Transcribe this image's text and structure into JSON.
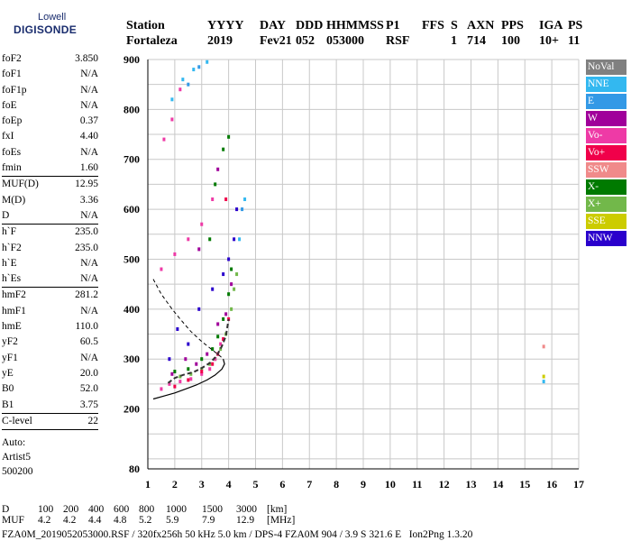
{
  "logo": {
    "line1": "Lowell",
    "line2": "DIGISONDE"
  },
  "header": {
    "line1": [
      "Station",
      "YYYY",
      "DAY",
      "DDD",
      "HHMMSS",
      "P1",
      "FFS",
      "S",
      "AXN",
      "PPS",
      "IGA",
      "PS"
    ],
    "line2": [
      "Fortaleza",
      "2019",
      "Fev21",
      "052",
      "053000",
      "RSF",
      "",
      "1",
      "714",
      "100",
      "10+",
      "11"
    ]
  },
  "params": {
    "group1": [
      {
        "k": "foF2",
        "v": "3.850"
      },
      {
        "k": "foF1",
        "v": "N/A"
      },
      {
        "k": "foF1p",
        "v": "N/A"
      },
      {
        "k": "foE",
        "v": "N/A"
      },
      {
        "k": "foEp",
        "v": "0.37"
      },
      {
        "k": "fxI",
        "v": "4.40"
      },
      {
        "k": "foEs",
        "v": "N/A"
      },
      {
        "k": "fmin",
        "v": "1.60"
      }
    ],
    "group2": [
      {
        "k": "MUF(D)",
        "v": "12.95"
      },
      {
        "k": "M(D)",
        "v": "3.36"
      },
      {
        "k": "D",
        "v": "N/A"
      }
    ],
    "group3": [
      {
        "k": "h`F",
        "v": "235.0"
      },
      {
        "k": "h`F2",
        "v": "235.0"
      },
      {
        "k": "h`E",
        "v": "N/A"
      },
      {
        "k": "h`Es",
        "v": "N/A"
      }
    ],
    "group4": [
      {
        "k": "hmF2",
        "v": "281.2"
      },
      {
        "k": "hmF1",
        "v": "N/A"
      },
      {
        "k": "hmE",
        "v": "110.0"
      },
      {
        "k": "yF2",
        "v": "60.5"
      },
      {
        "k": "yF1",
        "v": "N/A"
      },
      {
        "k": "yE",
        "v": "20.0"
      },
      {
        "k": "B0",
        "v": "52.0"
      },
      {
        "k": "B1",
        "v": "3.75"
      }
    ],
    "group5": [
      {
        "k": "C-level",
        "v": "22"
      }
    ],
    "auto": [
      "Auto:",
      "Artist5",
      "500200"
    ]
  },
  "legend": [
    {
      "label": "NoVal",
      "color": "#808080"
    },
    {
      "label": "NNE",
      "color": "#33b8f0"
    },
    {
      "label": "E",
      "color": "#3399e6"
    },
    {
      "label": "W",
      "color": "#a0009a"
    },
    {
      "label": "Vo-",
      "color": "#ee3aa6"
    },
    {
      "label": "Vo+",
      "color": "#f0004a"
    },
    {
      "label": "SSW",
      "color": "#f08a8a"
    },
    {
      "label": "X-",
      "color": "#007a00"
    },
    {
      "label": "X+",
      "color": "#72b84a"
    },
    {
      "label": "SSE",
      "color": "#cccc00"
    },
    {
      "label": "NNW",
      "color": "#2a00cc"
    }
  ],
  "bottom": {
    "d_label": "D",
    "d_values": [
      "100",
      "200",
      "400",
      "600",
      "800",
      "1000",
      "1500",
      "3000"
    ],
    "d_unit": "[km]",
    "muf_label": "MUF",
    "muf_values": [
      "4.2",
      "4.2",
      "4.4",
      "4.8",
      "5.2",
      "5.9",
      "7.9",
      "12.9"
    ],
    "muf_unit": "[MHz]"
  },
  "footer": "FZA0M_2019052053000.RSF / 320fx256h 50 kHz 5.0 km / DPS-4 FZA0M 904 / 3.9 S 321.6 E   Ion2Png 1.3.20",
  "chart_data": {
    "type": "scatter",
    "x_ticks": [
      "1",
      "2",
      "3",
      "4",
      "5",
      "6",
      "7",
      "8",
      "9",
      "10",
      "11",
      "12",
      "13",
      "14",
      "15",
      "16",
      "17"
    ],
    "y_ticks": [
      "80",
      "200",
      "300",
      "400",
      "500",
      "600",
      "700",
      "800",
      "900"
    ],
    "xlim": [
      1,
      17
    ],
    "ylim": [
      80,
      900
    ],
    "grid": true,
    "legend_position": "right",
    "series": [
      {
        "name": "X+",
        "color": "#72b84a",
        "points": [
          [
            2.2,
            265
          ],
          [
            2.6,
            270
          ],
          [
            3.0,
            280
          ],
          [
            3.3,
            290
          ],
          [
            3.5,
            300
          ],
          [
            3.7,
            320
          ],
          [
            3.9,
            350
          ],
          [
            4.1,
            400
          ],
          [
            4.2,
            440
          ],
          [
            4.3,
            470
          ]
        ]
      },
      {
        "name": "X-",
        "color": "#007a00",
        "points": [
          [
            2.0,
            275
          ],
          [
            2.5,
            280
          ],
          [
            3.0,
            300
          ],
          [
            3.4,
            320
          ],
          [
            3.6,
            345
          ],
          [
            3.8,
            380
          ],
          [
            4.0,
            430
          ],
          [
            4.1,
            480
          ],
          [
            3.3,
            540
          ],
          [
            3.5,
            650
          ],
          [
            3.8,
            720
          ],
          [
            4.0,
            745
          ]
        ]
      },
      {
        "name": "Vo-",
        "color": "#ee3aa6",
        "points": [
          [
            1.5,
            240
          ],
          [
            1.8,
            250
          ],
          [
            2.2,
            255
          ],
          [
            2.6,
            260
          ],
          [
            3.0,
            270
          ],
          [
            3.3,
            280
          ],
          [
            3.5,
            300
          ],
          [
            3.7,
            330
          ],
          [
            1.5,
            480
          ],
          [
            2.0,
            510
          ],
          [
            2.5,
            540
          ],
          [
            3.0,
            570
          ],
          [
            3.4,
            620
          ],
          [
            1.6,
            740
          ],
          [
            1.9,
            780
          ],
          [
            2.2,
            840
          ]
        ]
      },
      {
        "name": "Vo+",
        "color": "#f0004a",
        "points": [
          [
            2.0,
            245
          ],
          [
            2.5,
            258
          ],
          [
            3.0,
            275
          ],
          [
            3.4,
            290
          ],
          [
            3.6,
            310
          ],
          [
            3.8,
            340
          ],
          [
            4.0,
            380
          ],
          [
            3.9,
            620
          ]
        ]
      },
      {
        "name": "W",
        "color": "#a0009a",
        "points": [
          [
            1.9,
            270
          ],
          [
            2.4,
            300
          ],
          [
            2.8,
            290
          ],
          [
            3.2,
            310
          ],
          [
            3.6,
            370
          ],
          [
            3.9,
            390
          ],
          [
            4.1,
            450
          ],
          [
            2.9,
            520
          ],
          [
            3.6,
            680
          ]
        ]
      },
      {
        "name": "NNW",
        "color": "#2a00cc",
        "points": [
          [
            1.8,
            300
          ],
          [
            2.1,
            360
          ],
          [
            2.5,
            330
          ],
          [
            2.9,
            400
          ],
          [
            3.4,
            440
          ],
          [
            3.8,
            470
          ],
          [
            4.0,
            500
          ],
          [
            4.2,
            540
          ],
          [
            4.3,
            600
          ]
        ]
      },
      {
        "name": "NNE",
        "color": "#33b8f0",
        "points": [
          [
            1.9,
            820
          ],
          [
            2.3,
            860
          ],
          [
            2.7,
            880
          ],
          [
            3.2,
            895
          ],
          [
            4.4,
            540
          ],
          [
            4.6,
            620
          ],
          [
            15.7,
            255
          ]
        ]
      },
      {
        "name": "E",
        "color": "#3399e6",
        "points": [
          [
            2.5,
            850
          ],
          [
            2.9,
            885
          ],
          [
            4.5,
            600
          ]
        ]
      },
      {
        "name": "SSE",
        "color": "#cccc00",
        "points": [
          [
            15.7,
            265
          ]
        ]
      },
      {
        "name": "SSW",
        "color": "#f08a8a",
        "points": [
          [
            15.7,
            325
          ]
        ]
      }
    ],
    "curves": {
      "profile_solid": [
        [
          1.2,
          220
        ],
        [
          1.6,
          226
        ],
        [
          2.0,
          232
        ],
        [
          2.4,
          240
        ],
        [
          2.8,
          248
        ],
        [
          3.2,
          258
        ],
        [
          3.5,
          268
        ],
        [
          3.75,
          280
        ],
        [
          3.85,
          290
        ],
        [
          3.8,
          300
        ]
      ],
      "trace_dashed": [
        [
          1.75,
          252
        ],
        [
          2.0,
          262
        ],
        [
          2.3,
          268
        ],
        [
          2.7,
          274
        ],
        [
          3.0,
          282
        ],
        [
          3.3,
          292
        ],
        [
          3.55,
          306
        ],
        [
          3.75,
          326
        ],
        [
          3.9,
          346
        ],
        [
          4.0,
          380
        ]
      ],
      "profile_extension_dashed": [
        [
          1.2,
          460
        ],
        [
          1.5,
          430
        ],
        [
          1.9,
          400
        ],
        [
          2.2,
          380
        ],
        [
          2.6,
          355
        ],
        [
          3.0,
          335
        ],
        [
          3.4,
          318
        ],
        [
          3.7,
          305
        ],
        [
          3.8,
          300
        ]
      ]
    }
  }
}
